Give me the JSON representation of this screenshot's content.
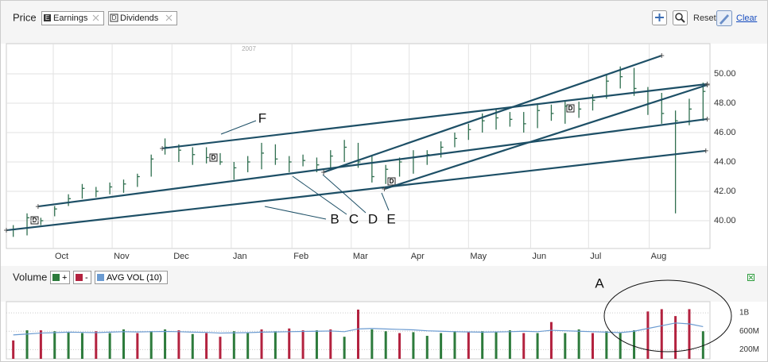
{
  "header": {
    "title": "Price",
    "earnings": "Earnings",
    "earnings_icon": "E",
    "dividends": "Dividends",
    "dividends_icon": "D",
    "reset": "Reset",
    "clear": "Clear"
  },
  "chart_data": [
    {
      "type": "ohlc",
      "year_label": "2007",
      "dividend_marker": "D",
      "categories": [
        null,
        null,
        null,
        null,
        null,
        null,
        null,
        null,
        null,
        null,
        null,
        null,
        null,
        null,
        null,
        null,
        null,
        null,
        null,
        null,
        null,
        null,
        null,
        null,
        null,
        null,
        null,
        null,
        null,
        null,
        null,
        null,
        null,
        null,
        null,
        null,
        null,
        null,
        null,
        null,
        null,
        null,
        null,
        null,
        null,
        null,
        null,
        null,
        null,
        null,
        null
      ],
      "high": [
        39.7,
        40.5,
        40.2,
        41.0,
        41.8,
        42.5,
        42.3,
        42.6,
        42.8,
        43.2,
        44.5,
        45.6,
        45.2,
        45.0,
        45.0,
        44.6,
        44.0,
        44.4,
        45.3,
        45.2,
        44.4,
        44.5,
        44.3,
        44.8,
        45.5,
        45.3,
        44.4,
        43.8,
        44.3,
        44.8,
        44.8,
        45.4,
        46.0,
        46.6,
        47.3,
        47.6,
        47.4,
        47.4,
        48.0,
        47.9,
        48.2,
        48.1,
        48.6,
        50.0,
        50.5,
        50.4,
        49.1,
        48.7,
        47.5,
        48.3,
        49.4
      ],
      "low": [
        38.9,
        39.0,
        39.7,
        40.3,
        41.0,
        41.5,
        41.6,
        41.8,
        41.9,
        42.3,
        43.0,
        44.5,
        44.0,
        43.8,
        43.9,
        43.8,
        42.8,
        43.3,
        43.5,
        43.8,
        43.3,
        43.7,
        43.3,
        43.5,
        44.0,
        43.6,
        42.6,
        42.5,
        43.0,
        43.2,
        43.8,
        44.3,
        45.0,
        45.5,
        46.0,
        46.2,
        46.4,
        46.0,
        46.3,
        46.8,
        46.6,
        47.0,
        47.5,
        48.3,
        49.0,
        48.5,
        47.2,
        46.6,
        40.5,
        46.5,
        46.8
      ],
      "close": [
        39.4,
        40.2,
        40.0,
        40.8,
        41.5,
        42.2,
        42.0,
        42.3,
        42.5,
        43.0,
        44.2,
        45.0,
        44.8,
        44.5,
        44.3,
        44.0,
        43.6,
        44.0,
        44.6,
        44.2,
        44.0,
        44.1,
        43.8,
        44.4,
        45.0,
        44.0,
        43.0,
        43.5,
        44.0,
        44.3,
        44.5,
        45.0,
        45.6,
        46.2,
        46.8,
        47.0,
        46.9,
        46.6,
        47.5,
        47.3,
        47.8,
        47.6,
        48.2,
        49.5,
        49.8,
        49.0,
        48.0,
        47.3,
        46.8,
        47.6,
        48.8
      ],
      "color": "#2f6f4f",
      "ylim": [
        38.11,
        52.05
      ],
      "yticks": [
        {
          "value": 40,
          "label": "40.00"
        },
        {
          "value": 42,
          "label": "42.00"
        },
        {
          "value": 44,
          "label": "44.00"
        },
        {
          "value": 46,
          "label": "46.00"
        },
        {
          "value": 48,
          "label": "48.00"
        },
        {
          "value": 50,
          "label": "50.00"
        }
      ],
      "xticks": [
        {
          "value": 2.9,
          "label": "Oct"
        },
        {
          "value": 7.17,
          "label": "Nov"
        },
        {
          "value": 11.5,
          "label": "Dec"
        },
        {
          "value": 15.8,
          "label": "Jan"
        },
        {
          "value": 20.2,
          "label": "Feb"
        },
        {
          "value": 24.5,
          "label": "Mar"
        },
        {
          "value": 28.7,
          "label": "Apr"
        },
        {
          "value": 33.0,
          "label": "May"
        },
        {
          "value": 37.5,
          "label": "Jun"
        },
        {
          "value": 41.7,
          "label": "Jul"
        },
        {
          "value": 46.1,
          "label": "Aug"
        }
      ],
      "grid": true,
      "trendlines": [
        {
          "x": [
            -0.5,
            50.2
          ],
          "y": [
            39.35,
            44.76
          ]
        },
        {
          "x": [
            1.8,
            50.3
          ],
          "y": [
            40.97,
            46.92
          ]
        },
        {
          "x": [
            10.8,
            50.3
          ],
          "y": [
            44.92,
            49.3
          ]
        },
        {
          "x": [
            22.5,
            47.0
          ],
          "y": [
            43.3,
            51.24
          ]
        },
        {
          "x": [
            26.9,
            50.3
          ],
          "y": [
            42.16,
            49.24
          ]
        }
      ],
      "trendline_color": "#1d4f66",
      "annotations": [
        "F",
        "B",
        "C",
        "D",
        "E"
      ]
    },
    {
      "type": "bar",
      "title": "Volume",
      "up_label": "+",
      "up_color": "#2d7b3c",
      "down_label": "-",
      "down_color": "#b3223f",
      "values": [
        400000000,
        620000000,
        620000000,
        600000000,
        580000000,
        560000000,
        600000000,
        560000000,
        640000000,
        560000000,
        600000000,
        640000000,
        620000000,
        540000000,
        560000000,
        480000000,
        600000000,
        560000000,
        640000000,
        600000000,
        660000000,
        620000000,
        620000000,
        640000000,
        480000000,
        1070000000,
        640000000,
        600000000,
        560000000,
        580000000,
        500000000,
        560000000,
        600000000,
        580000000,
        600000000,
        580000000,
        620000000,
        560000000,
        560000000,
        800000000,
        560000000,
        640000000,
        560000000,
        600000000,
        560000000,
        620000000,
        1030000000,
        1080000000,
        930000000,
        1080000000,
        600000000
      ],
      "colors": [
        "#b3223f",
        "#2d7b3c",
        "#b3223f",
        "#2d7b3c",
        "#2d7b3c",
        "#2d7b3c",
        "#b3223f",
        "#2d7b3c",
        "#2d7b3c",
        "#b3223f",
        "#2d7b3c",
        "#2d7b3c",
        "#b3223f",
        "#2d7b3c",
        "#b3223f",
        "#b3223f",
        "#2d7b3c",
        "#2d7b3c",
        "#b3223f",
        "#2d7b3c",
        "#b3223f",
        "#b3223f",
        "#2d7b3c",
        "#b3223f",
        "#2d7b3c",
        "#b3223f",
        "#2d7b3c",
        "#2d7b3c",
        "#b3223f",
        "#2d7b3c",
        "#2d7b3c",
        "#2d7b3c",
        "#2d7b3c",
        "#b3223f",
        "#2d7b3c",
        "#2d7b3c",
        "#2d7b3c",
        "#b3223f",
        "#2d7b3c",
        "#b3223f",
        "#2d7b3c",
        "#2d7b3c",
        "#b3223f",
        "#2d7b3c",
        "#2d7b3c",
        "#2d7b3c",
        "#b3223f",
        "#b3223f",
        "#b3223f",
        "#b3223f",
        "#2d7b3c"
      ],
      "series": [
        {
          "name": "AVG VOL (10)",
          "color": "#6b9bd1",
          "values": [
            520000000,
            540000000,
            560000000,
            570000000,
            580000000,
            575000000,
            570000000,
            580000000,
            590000000,
            585000000,
            590000000,
            595000000,
            590000000,
            580000000,
            575000000,
            560000000,
            565000000,
            570000000,
            580000000,
            585000000,
            590000000,
            595000000,
            600000000,
            605000000,
            590000000,
            650000000,
            660000000,
            650000000,
            640000000,
            630000000,
            610000000,
            600000000,
            590000000,
            585000000,
            580000000,
            585000000,
            590000000,
            600000000,
            590000000,
            620000000,
            610000000,
            600000000,
            590000000,
            580000000,
            570000000,
            600000000,
            660000000,
            720000000,
            780000000,
            760000000,
            700000000
          ]
        }
      ],
      "ylim": [
        0,
        1243000000
      ],
      "yticks": [
        {
          "value": 200000000,
          "label": "200M"
        },
        {
          "value": 600000000,
          "label": "600M"
        },
        {
          "value": 1000000000,
          "label": "1B"
        }
      ],
      "annotation": "A"
    }
  ]
}
